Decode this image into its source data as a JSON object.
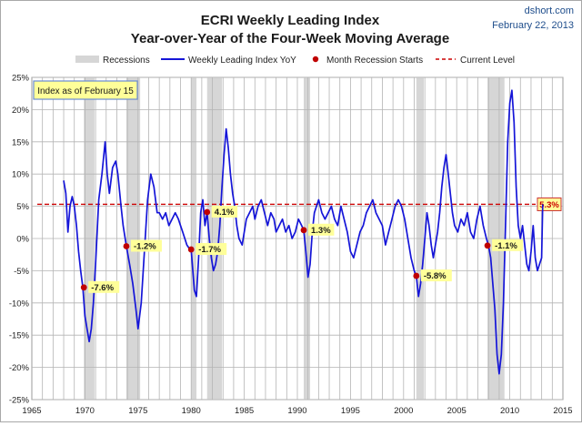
{
  "chart_data": {
    "type": "line",
    "title": "ECRI Weekly Leading Index",
    "subtitle": "Year-over-Year of the Four-Week Moving Average",
    "source": "dshort.com",
    "date": "February 22, 2013",
    "xlabel": "",
    "ylabel": "",
    "xlim": [
      1965,
      2015
    ],
    "ylim": [
      -25,
      25
    ],
    "x_ticks": [
      1965,
      1970,
      1975,
      1980,
      1985,
      1990,
      1995,
      2000,
      2005,
      2010,
      2015
    ],
    "y_ticks": [
      -25,
      -20,
      -15,
      -10,
      -5,
      0,
      5,
      10,
      15,
      20,
      25
    ],
    "y_tick_suffix": "%",
    "grid": true,
    "legend_position": "top",
    "legend": {
      "recessions": "Recessions",
      "series": "Weekly Leading Index YoY",
      "markers": "Month Recession Starts",
      "current": "Current Level"
    },
    "info_box": "Index as of February 15",
    "colors": {
      "series": "#1515d8",
      "recession": "#d6d6d6",
      "marker": "#c00000",
      "current": "#cc0000",
      "label_bg": "#ffff99",
      "title": "#1a1a1a",
      "source": "#1f4e8c"
    },
    "recessions": [
      {
        "start": 1969.9,
        "end": 1970.9
      },
      {
        "start": 1973.9,
        "end": 1975.2
      },
      {
        "start": 1980.0,
        "end": 1980.5
      },
      {
        "start": 1981.5,
        "end": 1982.9
      },
      {
        "start": 1990.6,
        "end": 1991.2
      },
      {
        "start": 2001.2,
        "end": 2001.9
      },
      {
        "start": 2007.9,
        "end": 2009.5
      }
    ],
    "recession_starts": [
      {
        "x": 1969.9,
        "y": -7.6,
        "label": "-7.6%"
      },
      {
        "x": 1973.9,
        "y": -1.2,
        "label": "-1.2%"
      },
      {
        "x": 1980.0,
        "y": -1.7,
        "label": "-1.7%"
      },
      {
        "x": 1981.5,
        "y": 4.1,
        "label": "4.1%"
      },
      {
        "x": 1990.6,
        "y": 1.3,
        "label": "1.3%"
      },
      {
        "x": 2001.2,
        "y": -5.8,
        "label": "-5.8%"
      },
      {
        "x": 2007.9,
        "y": -1.1,
        "label": "-1.1%"
      }
    ],
    "current_level": {
      "value": 5.3,
      "label": "5.3%"
    },
    "series": [
      {
        "name": "Weekly Leading Index YoY",
        "x": [
          1968.0,
          1968.2,
          1968.4,
          1968.6,
          1968.8,
          1969.0,
          1969.2,
          1969.4,
          1969.6,
          1969.8,
          1970.0,
          1970.2,
          1970.4,
          1970.6,
          1970.8,
          1971.0,
          1971.3,
          1971.6,
          1971.9,
          1972.1,
          1972.3,
          1972.6,
          1972.9,
          1973.1,
          1973.4,
          1973.6,
          1973.9,
          1974.2,
          1974.5,
          1974.8,
          1975.0,
          1975.3,
          1975.6,
          1975.9,
          1976.2,
          1976.5,
          1976.8,
          1977.0,
          1977.3,
          1977.6,
          1977.9,
          1978.2,
          1978.5,
          1978.8,
          1979.0,
          1979.2,
          1979.4,
          1979.6,
          1979.8,
          1980.0,
          1980.3,
          1980.5,
          1980.7,
          1980.9,
          1981.1,
          1981.3,
          1981.5,
          1981.7,
          1981.9,
          1982.1,
          1982.3,
          1982.5,
          1982.7,
          1982.9,
          1983.1,
          1983.3,
          1983.5,
          1983.7,
          1983.9,
          1984.1,
          1984.3,
          1984.5,
          1984.8,
          1985.0,
          1985.2,
          1985.5,
          1985.8,
          1986.0,
          1986.3,
          1986.6,
          1986.9,
          1987.2,
          1987.5,
          1987.8,
          1988.0,
          1988.3,
          1988.6,
          1988.9,
          1989.2,
          1989.5,
          1989.8,
          1990.1,
          1990.4,
          1990.6,
          1990.8,
          1991.0,
          1991.2,
          1991.4,
          1991.6,
          1991.8,
          1992.0,
          1992.3,
          1992.6,
          1992.9,
          1993.2,
          1993.5,
          1993.8,
          1994.1,
          1994.4,
          1994.7,
          1995.0,
          1995.3,
          1995.6,
          1995.9,
          1996.2,
          1996.5,
          1996.8,
          1997.1,
          1997.4,
          1997.7,
          1998.0,
          1998.3,
          1998.6,
          1998.9,
          1999.2,
          1999.5,
          1999.8,
          2000.1,
          2000.4,
          2000.7,
          2001.0,
          2001.2,
          2001.4,
          2001.6,
          2001.8,
          2002.0,
          2002.2,
          2002.4,
          2002.6,
          2002.8,
          2003.0,
          2003.2,
          2003.4,
          2003.6,
          2003.8,
          2004.0,
          2004.2,
          2004.4,
          2004.6,
          2004.8,
          2005.1,
          2005.4,
          2005.7,
          2006.0,
          2006.3,
          2006.6,
          2006.9,
          2007.2,
          2007.5,
          2007.8,
          2008.0,
          2008.2,
          2008.4,
          2008.6,
          2008.8,
          2009.0,
          2009.2,
          2009.4,
          2009.6,
          2009.8,
          2010.0,
          2010.2,
          2010.4,
          2010.6,
          2010.8,
          2011.0,
          2011.2,
          2011.4,
          2011.6,
          2011.8,
          2012.0,
          2012.2,
          2012.4,
          2012.6,
          2012.8,
          2013.0,
          2013.1
        ],
        "values": [
          9.0,
          7.0,
          1.0,
          5.0,
          6.5,
          5.0,
          2.0,
          -2.0,
          -5.0,
          -7.6,
          -12.0,
          -14.0,
          -16.0,
          -14.0,
          -10.0,
          -4.0,
          6.0,
          10.0,
          15.0,
          10.0,
          7.0,
          11.0,
          12.0,
          10.0,
          5.0,
          2.0,
          -1.2,
          -4.0,
          -7.0,
          -11.0,
          -14.0,
          -10.0,
          -2.0,
          6.0,
          10.0,
          8.0,
          4.0,
          4.0,
          3.0,
          4.0,
          2.0,
          3.0,
          4.0,
          3.0,
          2.0,
          1.0,
          0.0,
          -1.0,
          -1.5,
          -1.7,
          -8.0,
          -9.0,
          -3.0,
          4.0,
          6.0,
          2.0,
          4.1,
          0.0,
          -3.0,
          -5.0,
          -4.0,
          -2.0,
          2.0,
          8.0,
          13.0,
          17.0,
          14.0,
          10.0,
          7.0,
          5.0,
          2.0,
          0.0,
          -1.0,
          1.0,
          3.0,
          4.0,
          5.0,
          3.0,
          5.0,
          6.0,
          4.0,
          2.0,
          4.0,
          3.0,
          1.0,
          2.0,
          3.0,
          1.0,
          2.0,
          0.0,
          1.0,
          3.0,
          2.0,
          1.3,
          -2.0,
          -6.0,
          -4.0,
          1.0,
          4.0,
          5.0,
          6.0,
          4.0,
          3.0,
          4.0,
          5.0,
          3.0,
          2.0,
          5.0,
          3.0,
          1.0,
          -2.0,
          -3.0,
          -1.0,
          1.0,
          2.0,
          4.0,
          5.0,
          6.0,
          4.0,
          3.0,
          2.0,
          -1.0,
          1.0,
          3.0,
          5.0,
          6.0,
          5.0,
          3.0,
          0.0,
          -3.0,
          -5.0,
          -5.8,
          -9.0,
          -7.0,
          -4.0,
          0.0,
          4.0,
          2.0,
          -1.0,
          -3.0,
          -1.0,
          1.0,
          4.0,
          8.0,
          11.0,
          13.0,
          10.0,
          7.0,
          4.0,
          2.0,
          1.0,
          3.0,
          2.0,
          4.0,
          1.0,
          0.0,
          3.0,
          5.0,
          2.0,
          0.0,
          -1.1,
          -3.0,
          -7.0,
          -11.0,
          -18.0,
          -21.0,
          -18.0,
          -10.0,
          2.0,
          15.0,
          21.0,
          23.0,
          18.0,
          8.0,
          2.0,
          0.0,
          2.0,
          -1.0,
          -4.0,
          -5.0,
          -2.0,
          2.0,
          -3.0,
          -5.0,
          -4.0,
          -3.0,
          5.3
        ]
      }
    ]
  }
}
